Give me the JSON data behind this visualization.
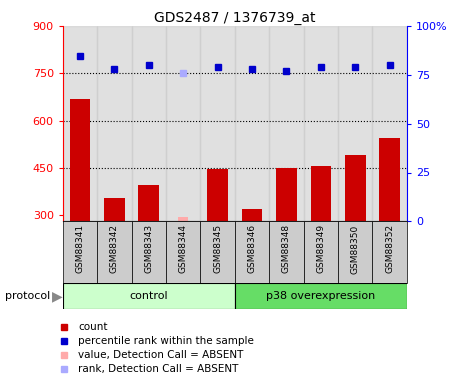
{
  "title": "GDS2487 / 1376739_at",
  "samples": [
    "GSM88341",
    "GSM88342",
    "GSM88343",
    "GSM88344",
    "GSM88345",
    "GSM88346",
    "GSM88348",
    "GSM88349",
    "GSM88350",
    "GSM88352"
  ],
  "bar_values": [
    670,
    355,
    395,
    null,
    445,
    320,
    450,
    455,
    490,
    545
  ],
  "bar_absent": [
    null,
    null,
    null,
    295,
    null,
    null,
    null,
    null,
    null,
    null
  ],
  "rank_values": [
    85,
    78,
    80,
    null,
    79,
    78,
    77,
    79,
    79,
    80
  ],
  "rank_absent": [
    null,
    null,
    null,
    76,
    null,
    null,
    null,
    null,
    null,
    null
  ],
  "control_group": [
    0,
    1,
    2,
    3,
    4
  ],
  "p38_group": [
    5,
    6,
    7,
    8,
    9
  ],
  "ylim_left": [
    280,
    900
  ],
  "ylim_right": [
    0,
    100
  ],
  "yticks_left": [
    300,
    450,
    600,
    750,
    900
  ],
  "yticks_right": [
    0,
    25,
    50,
    75,
    100
  ],
  "hlines": [
    450,
    600,
    750
  ],
  "bar_color": "#cc0000",
  "bar_absent_color": "#ffaaaa",
  "rank_color": "#0000cc",
  "rank_absent_color": "#aaaaff",
  "control_bg": "#ccffcc",
  "p38_bg": "#66dd66",
  "label_bg": "#cccccc",
  "white_bg": "#ffffff",
  "legend_entries": [
    {
      "label": "count",
      "color": "#cc0000"
    },
    {
      "label": "percentile rank within the sample",
      "color": "#0000cc"
    },
    {
      "label": "value, Detection Call = ABSENT",
      "color": "#ffaaaa"
    },
    {
      "label": "rank, Detection Call = ABSENT",
      "color": "#aaaaff"
    }
  ]
}
